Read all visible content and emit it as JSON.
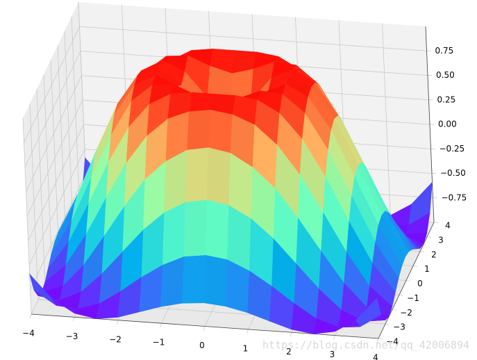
{
  "chart_data": {
    "type": "surface",
    "colormap": "rainbow",
    "watermark": "https://blog.csdn.net/qq_42006894",
    "x": [
      -4,
      -3.5,
      -3,
      -2.5,
      -2,
      -1.5,
      -1,
      -0.5,
      0,
      0.5,
      1,
      1.5,
      2,
      2.5,
      3,
      3.5,
      4
    ],
    "y": [
      -4,
      -3.5,
      -3,
      -2.5,
      -2,
      -1.5,
      -1,
      -0.5,
      0,
      0.5,
      1,
      1.5,
      2,
      2.5,
      3,
      3.5,
      4
    ],
    "z": [
      [
        -0.59,
        -0.83,
        -0.96,
        -1,
        -0.97,
        -0.9,
        -0.83,
        -0.78,
        -0.76,
        -0.78,
        -0.83,
        -0.9,
        -0.97,
        -1,
        -0.96,
        -0.83,
        -0.59
      ],
      [
        -0.83,
        -0.97,
        -0.99,
        -0.92,
        -0.78,
        -0.62,
        -0.48,
        -0.38,
        -0.35,
        -0.38,
        -0.48,
        -0.62,
        -0.78,
        -0.92,
        -0.99,
        -0.97,
        -0.83
      ],
      [
        -0.96,
        -0.99,
        -0.89,
        -0.69,
        -0.45,
        -0.21,
        -0.02,
        0.1,
        0.14,
        0.1,
        -0.02,
        -0.21,
        -0.45,
        -0.69,
        -0.89,
        -0.99,
        -0.96
      ],
      [
        -1,
        -0.92,
        -0.69,
        -0.38,
        -0.06,
        0.23,
        0.43,
        0.56,
        0.6,
        0.56,
        0.43,
        0.23,
        -0.06,
        -0.38,
        -0.69,
        -0.92,
        -1
      ],
      [
        -0.97,
        -0.78,
        -0.45,
        -0.06,
        0.31,
        0.6,
        0.79,
        0.88,
        0.91,
        0.88,
        0.79,
        0.6,
        0.31,
        -0.06,
        -0.45,
        -0.78,
        -0.97
      ],
      [
        -0.9,
        -0.62,
        -0.21,
        0.23,
        0.6,
        0.85,
        0.97,
        1,
        1,
        1,
        0.97,
        0.85,
        0.6,
        0.23,
        -0.21,
        -0.62,
        -0.9
      ],
      [
        -0.83,
        -0.48,
        -0.02,
        0.43,
        0.79,
        0.97,
        0.99,
        0.9,
        0.84,
        0.9,
        0.99,
        0.97,
        0.79,
        0.43,
        -0.02,
        -0.48,
        -0.83
      ],
      [
        -0.78,
        -0.38,
        0.1,
        0.56,
        0.88,
        1,
        0.9,
        0.65,
        0.48,
        0.65,
        0.9,
        1,
        0.88,
        0.56,
        0.1,
        -0.38,
        -0.78
      ],
      [
        -0.76,
        -0.35,
        0.14,
        0.6,
        0.91,
        1,
        0.84,
        0.48,
        0,
        0.48,
        0.84,
        1,
        0.91,
        0.6,
        0.14,
        -0.35,
        -0.76
      ],
      [
        -0.78,
        -0.38,
        0.1,
        0.56,
        0.88,
        1,
        0.9,
        0.65,
        0.48,
        0.65,
        0.9,
        1,
        0.88,
        0.56,
        0.1,
        -0.38,
        -0.78
      ],
      [
        -0.83,
        -0.48,
        -0.02,
        0.43,
        0.79,
        0.97,
        0.99,
        0.9,
        0.84,
        0.9,
        0.99,
        0.97,
        0.79,
        0.43,
        -0.02,
        -0.48,
        -0.83
      ],
      [
        -0.9,
        -0.62,
        -0.21,
        0.23,
        0.6,
        0.85,
        0.97,
        1,
        1,
        1,
        0.97,
        0.85,
        0.6,
        0.23,
        -0.21,
        -0.62,
        -0.9
      ],
      [
        -0.97,
        -0.78,
        -0.45,
        -0.06,
        0.31,
        0.6,
        0.79,
        0.88,
        0.91,
        0.88,
        0.79,
        0.6,
        0.31,
        -0.06,
        -0.45,
        -0.78,
        -0.97
      ],
      [
        -1,
        -0.92,
        -0.69,
        -0.38,
        -0.06,
        0.23,
        0.43,
        0.56,
        0.6,
        0.56,
        0.43,
        0.23,
        -0.06,
        -0.38,
        -0.69,
        -0.92,
        -1
      ],
      [
        -0.96,
        -0.99,
        -0.89,
        -0.69,
        -0.45,
        -0.21,
        -0.02,
        0.1,
        0.14,
        0.1,
        -0.02,
        -0.21,
        -0.45,
        -0.69,
        -0.89,
        -0.99,
        -0.96
      ],
      [
        -0.83,
        -0.97,
        -0.99,
        -0.92,
        -0.78,
        -0.62,
        -0.48,
        -0.38,
        -0.35,
        -0.38,
        -0.48,
        -0.62,
        -0.78,
        -0.92,
        -0.99,
        -0.97,
        -0.83
      ],
      [
        -0.59,
        -0.83,
        -0.96,
        -1,
        -0.97,
        -0.9,
        -0.83,
        -0.78,
        -0.76,
        -0.78,
        -0.83,
        -0.9,
        -0.97,
        -1,
        -0.96,
        -0.83,
        -0.59
      ]
    ],
    "xlim": [
      -4,
      4
    ],
    "ylim": [
      -4,
      4
    ],
    "zlim": [
      -1,
      1
    ],
    "xticks": [
      {
        "value": -4,
        "label": "−4"
      },
      {
        "value": -3,
        "label": "−3"
      },
      {
        "value": -2,
        "label": "−2"
      },
      {
        "value": -1,
        "label": "−1"
      },
      0,
      1,
      2,
      3,
      4
    ],
    "yticks": [
      {
        "value": -4,
        "label": "−4"
      },
      {
        "value": -3,
        "label": "−3"
      },
      {
        "value": -2,
        "label": "−2"
      },
      {
        "value": -1,
        "label": "−1"
      },
      0,
      1,
      2,
      3,
      4
    ],
    "zticks": [
      {
        "value": -0.75,
        "label": "−0.75"
      },
      {
        "value": -0.5,
        "label": "−0.50"
      },
      {
        "value": -0.25,
        "label": "−0.25"
      },
      {
        "value": 0,
        "label": "0.00"
      },
      0.25,
      {
        "value": 0.5,
        "label": "0.50"
      },
      0.75
    ],
    "grid": true
  }
}
